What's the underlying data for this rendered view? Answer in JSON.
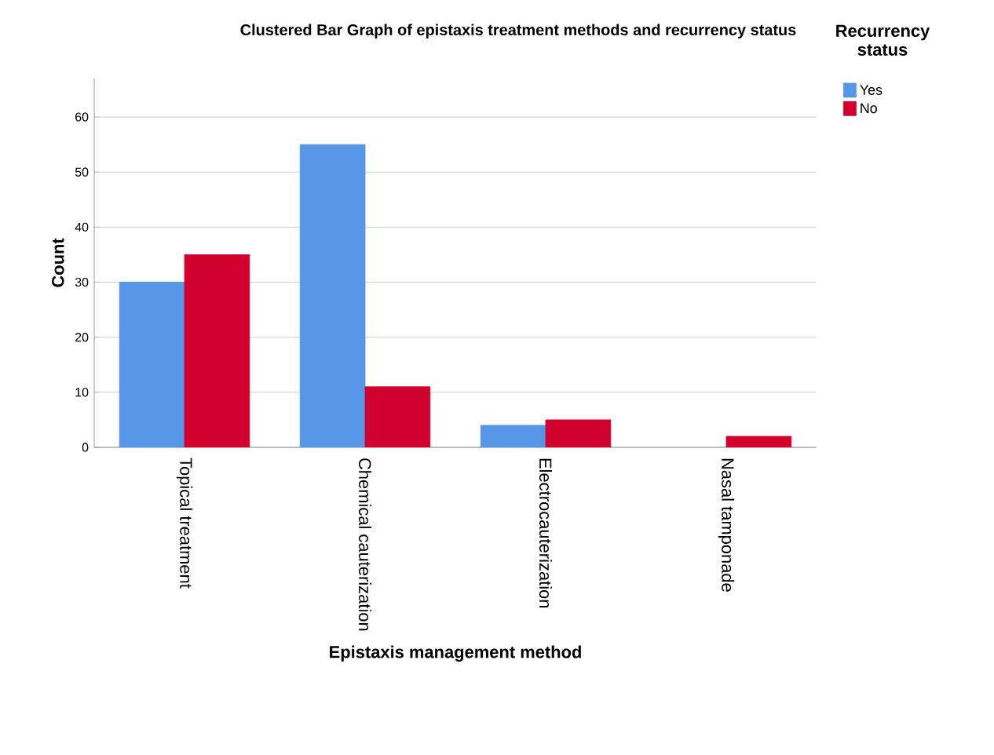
{
  "chart_data": {
    "type": "bar",
    "title": "Clustered Bar Graph of epistaxis treatment methods and recurrency status",
    "xlabel": "Epistaxis management method",
    "ylabel": "Count",
    "legend_title": "Recurrency status",
    "categories": [
      "Topical treatment",
      "Chemical cauterization",
      "Electrocauterization",
      "Nasal tamponade"
    ],
    "series": [
      {
        "name": "Yes",
        "color": "#5596e6",
        "values": [
          30,
          55,
          4,
          null
        ]
      },
      {
        "name": "No",
        "color": "#d2002d",
        "values": [
          35,
          11,
          5,
          2
        ]
      }
    ],
    "ylim": [
      0,
      67
    ],
    "yticks": [
      0,
      10,
      20,
      30,
      40,
      50,
      60
    ],
    "grid": "y",
    "legend": "top right"
  }
}
